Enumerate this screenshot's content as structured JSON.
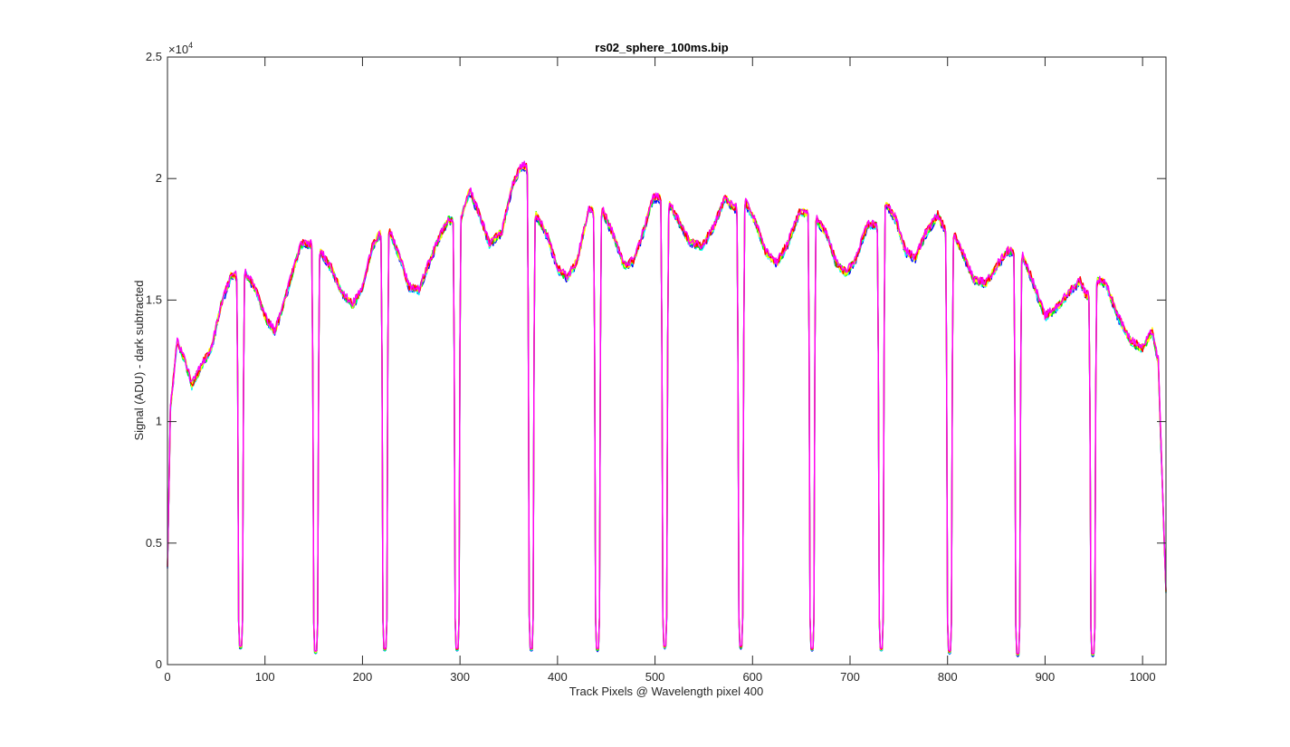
{
  "chart_data": {
    "type": "line",
    "title": "rs02_sphere_100ms.bip",
    "xlabel": "Track Pixels @ Wavelength pixel 400",
    "ylabel": "Signal (ADU) - dark subtracted",
    "xlim": [
      0,
      1024
    ],
    "ylim": [
      0,
      25000
    ],
    "y_exponent_label": {
      "base": "×10",
      "power": "4"
    },
    "xticks": [
      0,
      100,
      200,
      300,
      400,
      500,
      600,
      700,
      800,
      900,
      1000
    ],
    "xtick_labels": [
      "0",
      "100",
      "200",
      "300",
      "400",
      "500",
      "600",
      "700",
      "800",
      "900",
      "1000"
    ],
    "yticks": [
      0,
      5000,
      10000,
      15000,
      20000,
      25000
    ],
    "ytick_labels": [
      "0",
      "0.5",
      "1",
      "1.5",
      "2",
      "2.5"
    ],
    "grid": false,
    "series_colors": [
      "#0000ff",
      "#00ffff",
      "#00ff00",
      "#ffff00",
      "#ff0000",
      "#ff00ff"
    ],
    "fiber_segments": [
      {
        "start": 0,
        "end": 70,
        "profile": [
          [
            0,
            4000
          ],
          [
            3,
            10500
          ],
          [
            10,
            13300
          ],
          [
            18,
            12500
          ],
          [
            25,
            11500
          ],
          [
            35,
            12300
          ],
          [
            45,
            13000
          ],
          [
            55,
            14800
          ],
          [
            65,
            16000
          ]
        ]
      },
      {
        "start": 80,
        "end": 147,
        "profile": [
          [
            80,
            16100
          ],
          [
            90,
            15500
          ],
          [
            100,
            14300
          ],
          [
            110,
            13700
          ],
          [
            118,
            14700
          ],
          [
            128,
            16100
          ],
          [
            137,
            17300
          ]
        ]
      },
      {
        "start": 157,
        "end": 218,
        "profile": [
          [
            157,
            17000
          ],
          [
            168,
            16300
          ],
          [
            180,
            15200
          ],
          [
            190,
            14800
          ],
          [
            200,
            15500
          ],
          [
            210,
            17200
          ],
          [
            217,
            17700
          ]
        ]
      },
      {
        "start": 228,
        "end": 292,
        "profile": [
          [
            228,
            17800
          ],
          [
            238,
            16800
          ],
          [
            248,
            15500
          ],
          [
            258,
            15400
          ],
          [
            268,
            16500
          ],
          [
            278,
            17500
          ],
          [
            288,
            18300
          ]
        ]
      },
      {
        "start": 302,
        "end": 368,
        "profile": [
          [
            302,
            18500
          ],
          [
            310,
            19500
          ],
          [
            320,
            18500
          ],
          [
            330,
            17300
          ],
          [
            343,
            17800
          ],
          [
            353,
            19600
          ],
          [
            362,
            20500
          ]
        ]
      },
      {
        "start": 378,
        "end": 436,
        "profile": [
          [
            378,
            18500
          ],
          [
            390,
            17600
          ],
          [
            400,
            16300
          ],
          [
            410,
            15900
          ],
          [
            420,
            16600
          ],
          [
            432,
            18700
          ]
        ]
      },
      {
        "start": 446,
        "end": 505,
        "profile": [
          [
            446,
            18700
          ],
          [
            458,
            17600
          ],
          [
            468,
            16400
          ],
          [
            478,
            16600
          ],
          [
            488,
            17800
          ],
          [
            498,
            19200
          ]
        ]
      },
      {
        "start": 515,
        "end": 583,
        "profile": [
          [
            515,
            18900
          ],
          [
            525,
            18200
          ],
          [
            535,
            17400
          ],
          [
            548,
            17200
          ],
          [
            560,
            18000
          ],
          [
            572,
            19200
          ],
          [
            580,
            18800
          ]
        ]
      },
      {
        "start": 593,
        "end": 656,
        "profile": [
          [
            593,
            19000
          ],
          [
            603,
            18200
          ],
          [
            613,
            17000
          ],
          [
            625,
            16500
          ],
          [
            636,
            17300
          ],
          [
            648,
            18600
          ]
        ]
      },
      {
        "start": 666,
        "end": 727,
        "profile": [
          [
            666,
            18300
          ],
          [
            676,
            17700
          ],
          [
            686,
            16500
          ],
          [
            696,
            16100
          ],
          [
            706,
            16700
          ],
          [
            718,
            18100
          ]
        ]
      },
      {
        "start": 737,
        "end": 797,
        "profile": [
          [
            737,
            19000
          ],
          [
            747,
            18300
          ],
          [
            757,
            17000
          ],
          [
            767,
            16700
          ],
          [
            777,
            17700
          ],
          [
            790,
            18500
          ],
          [
            796,
            18000
          ]
        ]
      },
      {
        "start": 807,
        "end": 867,
        "profile": [
          [
            807,
            17700
          ],
          [
            817,
            16800
          ],
          [
            827,
            15800
          ],
          [
            840,
            15700
          ],
          [
            852,
            16500
          ],
          [
            862,
            17000
          ]
        ]
      },
      {
        "start": 877,
        "end": 944,
        "profile": [
          [
            877,
            16800
          ],
          [
            887,
            15800
          ],
          [
            900,
            14300
          ],
          [
            912,
            14700
          ],
          [
            925,
            15300
          ],
          [
            936,
            15800
          ],
          [
            942,
            15200
          ]
        ]
      },
      {
        "start": 954,
        "end": 1024,
        "profile": [
          [
            954,
            15800
          ],
          [
            962,
            15700
          ],
          [
            975,
            14300
          ],
          [
            988,
            13300
          ],
          [
            1000,
            13000
          ],
          [
            1010,
            13700
          ],
          [
            1016,
            12500
          ],
          [
            1024,
            3000
          ]
        ]
      }
    ],
    "gap_minima": [
      700,
      500,
      600,
      600,
      600,
      600,
      700,
      700,
      600,
      600,
      500,
      400,
      400
    ]
  }
}
